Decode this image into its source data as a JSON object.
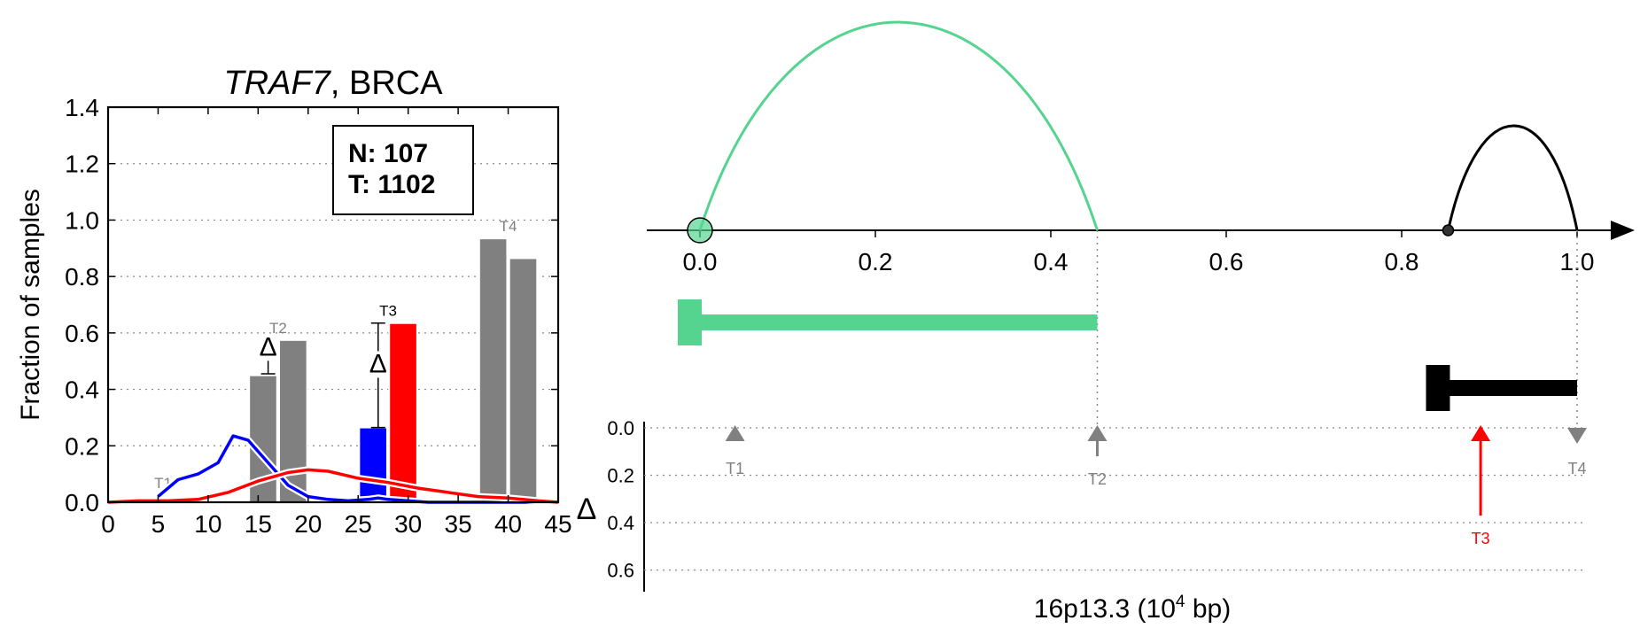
{
  "chart_data": [
    {
      "type": "bar",
      "title_italic": "TRAF7",
      "title_rest": ", BRCA",
      "xlabel": "",
      "ylabel": "Fraction of samples",
      "xlim": [
        0,
        45
      ],
      "ylim": [
        0,
        1.4
      ],
      "xticks": [
        "0",
        "5",
        "10",
        "15",
        "20",
        "25",
        "30",
        "35",
        "40",
        "45"
      ],
      "yticks": [
        "0.0",
        "0.2",
        "0.4",
        "0.6",
        "0.8",
        "1.0",
        "1.2",
        "1.4"
      ],
      "grid": "horizontal dotted",
      "legend_box": {
        "line1": "N: 107",
        "line2": "T: 1102"
      },
      "delta_symbol": "Δ",
      "bars": [
        {
          "label": "T2",
          "x": 15.5,
          "value": 0.45,
          "color": "#808080",
          "label_color": "#808080"
        },
        {
          "label": "T2",
          "x": 18.5,
          "value": 0.575,
          "color": "#808080",
          "label_color": "#808080"
        },
        {
          "label": "T3",
          "x": 26.5,
          "value": 0.265,
          "color": "#0000ff",
          "label_color": "#000000"
        },
        {
          "label": "T3",
          "x": 29.5,
          "value": 0.635,
          "color": "#ff0000",
          "label_color": "#000000"
        },
        {
          "label": "T4",
          "x": 38.5,
          "value": 0.935,
          "color": "#808080",
          "label_color": "#808080"
        },
        {
          "label": "T4",
          "x": 41.5,
          "value": 0.865,
          "color": "#808080",
          "label_color": "#808080"
        }
      ],
      "bar_labels": [
        {
          "text": "T1",
          "x": 5.5,
          "y": 0.05,
          "color": "#808080"
        },
        {
          "text": "T2",
          "x": 17.0,
          "y": 0.6,
          "color": "#808080"
        },
        {
          "text": "T3",
          "x": 28.0,
          "y": 0.66,
          "color": "#000000"
        },
        {
          "text": "T4",
          "x": 40.0,
          "y": 0.96,
          "color": "#808080"
        }
      ],
      "deltas": [
        {
          "x": 16.0,
          "y_low": 0.455,
          "y_high": 0.575,
          "symbol_y": 0.52
        },
        {
          "x": 27.0,
          "y_low": 0.265,
          "y_high": 0.635,
          "symbol_y": 0.46
        }
      ],
      "series": [
        {
          "name": "N",
          "color": "#0000ff",
          "points": [
            [
              5,
              0.02
            ],
            [
              7,
              0.08
            ],
            [
              9,
              0.1
            ],
            [
              11,
              0.14
            ],
            [
              12.5,
              0.235
            ],
            [
              14,
              0.22
            ],
            [
              16,
              0.14
            ],
            [
              18,
              0.06
            ],
            [
              20,
              0.02
            ],
            [
              22,
              0.01
            ],
            [
              24,
              0.005
            ],
            [
              26,
              0.01
            ],
            [
              27,
              0.015
            ],
            [
              28,
              0.01
            ],
            [
              30,
              0.005
            ],
            [
              32,
              0.0
            ],
            [
              45,
              0.0
            ]
          ]
        },
        {
          "name": "T",
          "color": "#ff0000",
          "points": [
            [
              0,
              0.0
            ],
            [
              3,
              0.005
            ],
            [
              6,
              0.005
            ],
            [
              9,
              0.01
            ],
            [
              12,
              0.035
            ],
            [
              15,
              0.075
            ],
            [
              18,
              0.105
            ],
            [
              20,
              0.115
            ],
            [
              22,
              0.11
            ],
            [
              25,
              0.085
            ],
            [
              28,
              0.07
            ],
            [
              31,
              0.05
            ],
            [
              34,
              0.035
            ],
            [
              37,
              0.02
            ],
            [
              40,
              0.015
            ],
            [
              43,
              0.005
            ],
            [
              45,
              0.0
            ]
          ]
        }
      ]
    },
    {
      "type": "diagram",
      "xticks": [
        "0.0",
        "0.2",
        "0.4",
        "0.6",
        "0.8",
        "1.0"
      ],
      "x_range": [
        0,
        1.0
      ],
      "arcs": [
        {
          "start": 0.0,
          "end": 0.453,
          "peak_x": 0.225,
          "color": "#55d490",
          "start_marker": "circle-large"
        },
        {
          "start": 0.853,
          "end": 1.0,
          "peak_x": 0.93,
          "color": "#000000",
          "start_marker": "circle-small"
        }
      ],
      "genes": [
        {
          "start": 0.0,
          "end": 0.453,
          "color": "#55d490",
          "head": "left"
        },
        {
          "start": 0.853,
          "end": 1.0,
          "color": "#000000",
          "head": "left"
        }
      ],
      "delta_axis": {
        "ylabel": "Δ",
        "yticks": [
          "0.0",
          "0.2",
          "0.4",
          "0.6"
        ],
        "ylim": [
          0,
          0.7
        ],
        "xlabel_main": "16p13.3 (10",
        "xlabel_sup": "4",
        "xlabel_tail": " bp)",
        "markers": [
          {
            "label": "T1",
            "x": 0.04,
            "delta": 0.0,
            "direction": "up",
            "color": "#808080"
          },
          {
            "label": "T2",
            "x": 0.453,
            "delta": 0.12,
            "direction": "up",
            "color": "#808080"
          },
          {
            "label": "T3",
            "x": 0.89,
            "delta": 0.37,
            "direction": "up",
            "color": "#ff0000"
          },
          {
            "label": "T4",
            "x": 1.0,
            "delta": 0.0,
            "direction": "down",
            "color": "#808080"
          }
        ]
      }
    }
  ]
}
